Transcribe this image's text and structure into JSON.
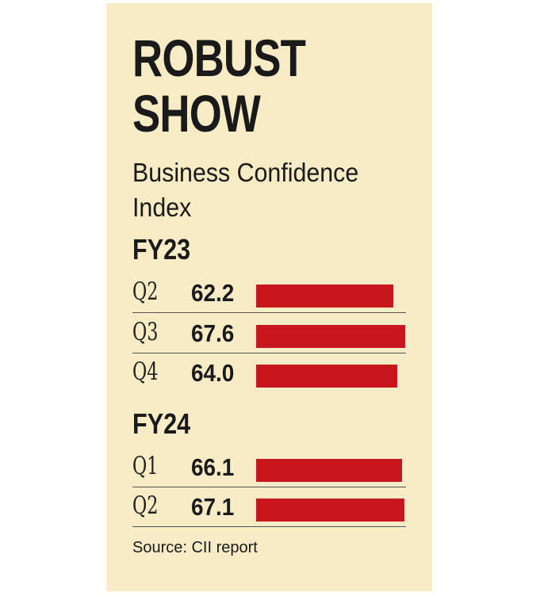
{
  "chart_data": {
    "type": "bar",
    "orientation": "horizontal",
    "title": "ROBUST SHOW",
    "subtitle": "Business Confidence Index",
    "color": "#c8161d",
    "groups": [
      {
        "name": "FY23",
        "categories": [
          "Q2",
          "Q3",
          "Q4"
        ],
        "values": [
          62.2,
          67.6,
          64.0
        ],
        "value_labels": [
          "62.2",
          "67.6",
          "64.0"
        ]
      },
      {
        "name": "FY24",
        "categories": [
          "Q1",
          "Q2"
        ],
        "values": [
          66.1,
          67.1
        ],
        "value_labels": [
          "66.1",
          "67.1"
        ]
      }
    ],
    "source": "Source: CII report"
  }
}
